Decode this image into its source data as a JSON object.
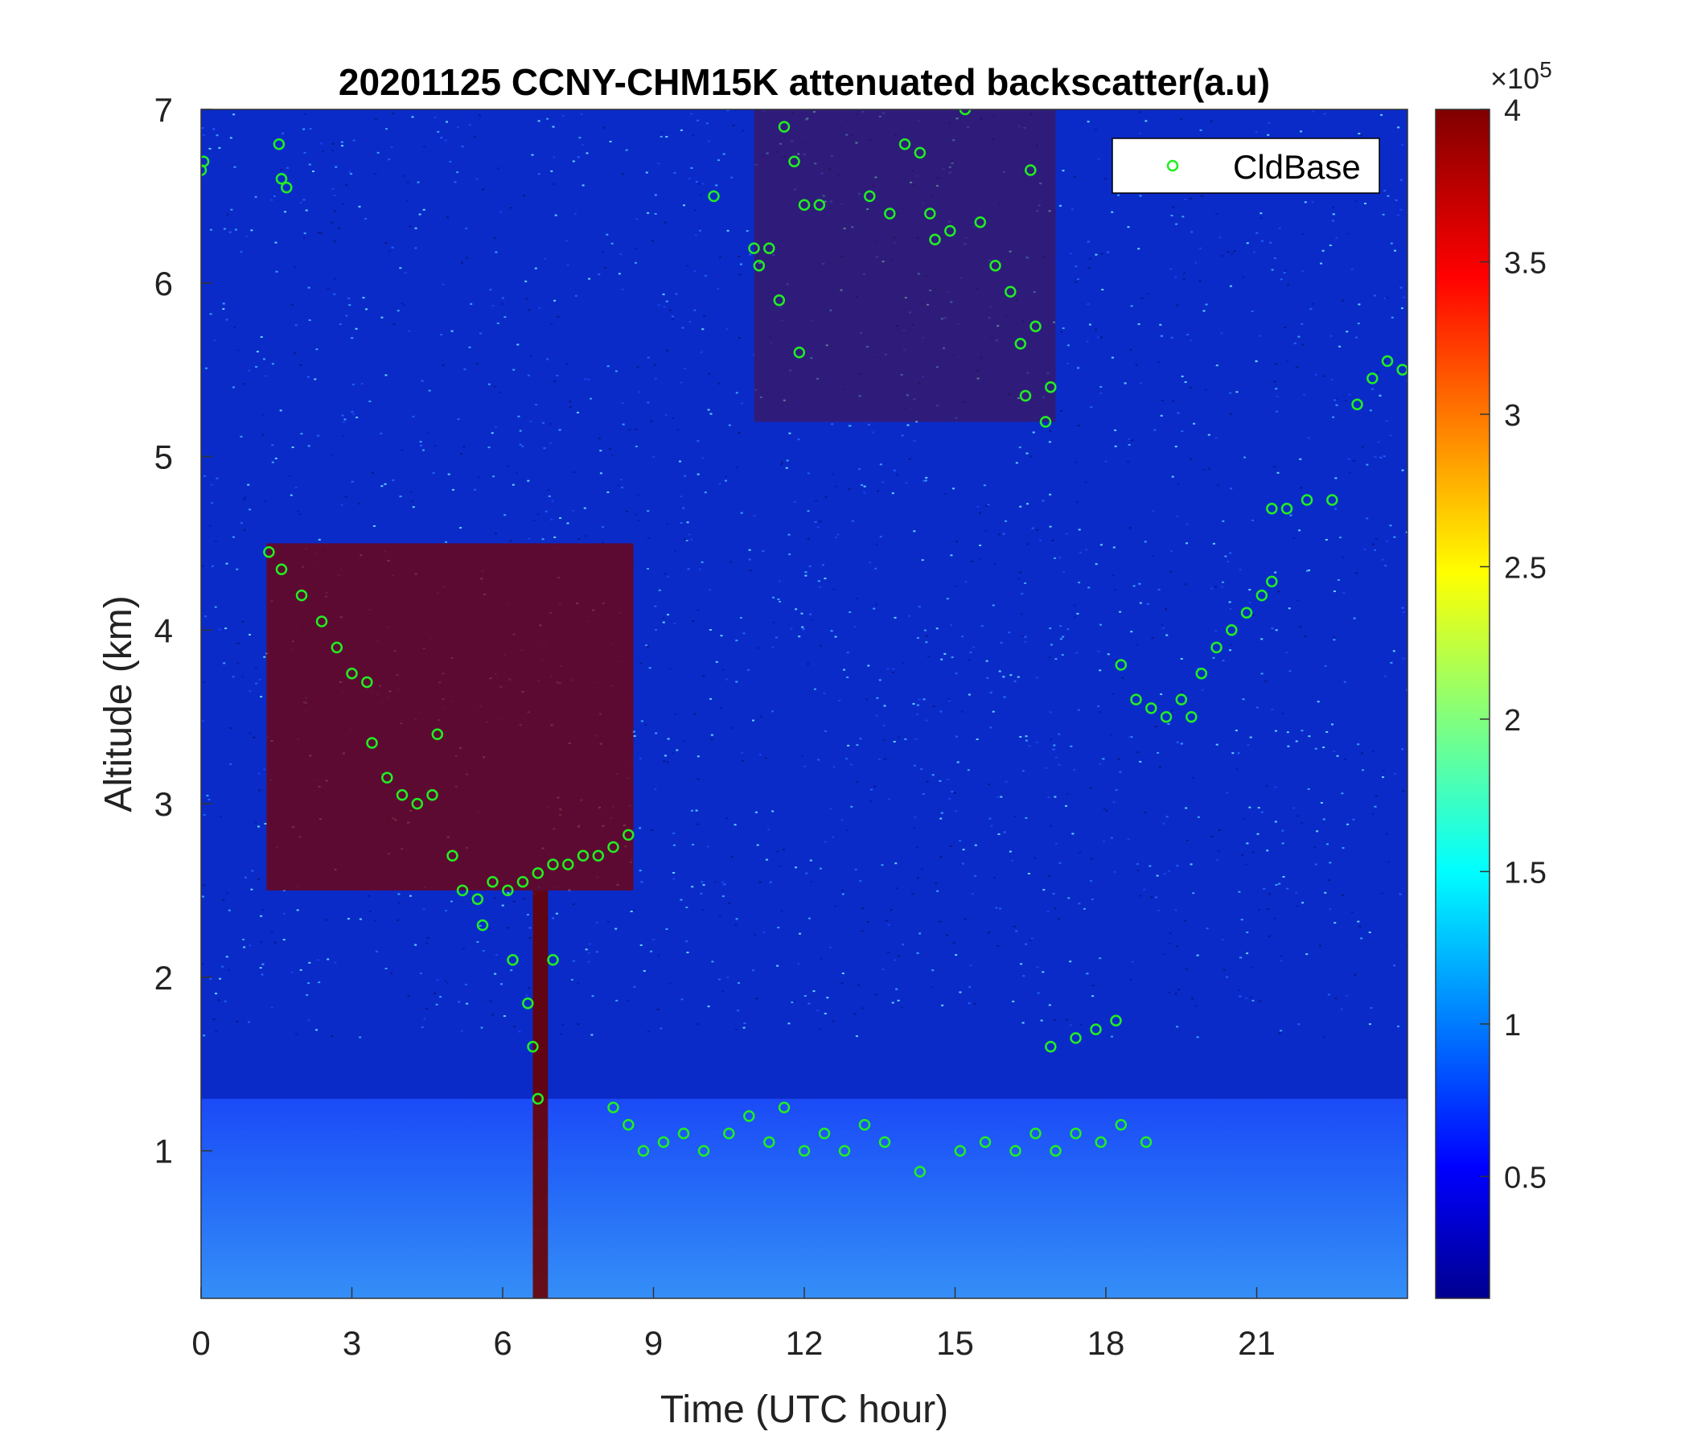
{
  "chart_data": {
    "type": "heatmap",
    "title": "20201125 CCNY-CHM15K attenuated backscatter(a.u)",
    "xlabel": "Time (UTC hour)",
    "ylabel": "Altitude (km)",
    "xlim": [
      0,
      24
    ],
    "ylim": [
      0.15,
      7
    ],
    "xticks": [
      0,
      3,
      6,
      9,
      12,
      15,
      18,
      21
    ],
    "xtick_labels": [
      "0",
      "3",
      "6",
      "9",
      "12",
      "15",
      "18",
      "21"
    ],
    "yticks": [
      1,
      2,
      3,
      4,
      5,
      6,
      7
    ],
    "ytick_labels": [
      "1",
      "2",
      "3",
      "4",
      "5",
      "6",
      "7"
    ],
    "colorbar": {
      "colormap": "jet",
      "clim": [
        0.1,
        4
      ],
      "ticks": [
        0.5,
        1,
        1.5,
        2,
        2.5,
        3,
        3.5,
        4
      ],
      "tick_labels": [
        "0.5",
        "1",
        "1.5",
        "2",
        "2.5",
        "3",
        "3.5",
        "4"
      ],
      "exponent_label": "×10",
      "exponent_power": "5"
    },
    "legend": {
      "position": "top-right",
      "entries": [
        "CldBase"
      ]
    },
    "series": [
      {
        "name": "CldBase",
        "marker": "open-circle",
        "color": "#22ee22",
        "points": [
          [
            0.0,
            6.65
          ],
          [
            0.05,
            6.7
          ],
          [
            1.55,
            6.8
          ],
          [
            1.6,
            6.6
          ],
          [
            1.7,
            6.55
          ],
          [
            1.35,
            4.45
          ],
          [
            1.6,
            4.35
          ],
          [
            2.0,
            4.2
          ],
          [
            2.4,
            4.05
          ],
          [
            2.7,
            3.9
          ],
          [
            3.0,
            3.75
          ],
          [
            3.3,
            3.7
          ],
          [
            3.4,
            3.35
          ],
          [
            3.7,
            3.15
          ],
          [
            4.0,
            3.05
          ],
          [
            4.3,
            3.0
          ],
          [
            4.6,
            3.05
          ],
          [
            5.0,
            2.7
          ],
          [
            5.2,
            2.5
          ],
          [
            5.5,
            2.45
          ],
          [
            5.8,
            2.55
          ],
          [
            6.1,
            2.5
          ],
          [
            6.4,
            2.55
          ],
          [
            6.7,
            2.6
          ],
          [
            7.0,
            2.65
          ],
          [
            7.3,
            2.65
          ],
          [
            7.6,
            2.7
          ],
          [
            7.9,
            2.7
          ],
          [
            8.2,
            2.75
          ],
          [
            8.5,
            2.82
          ],
          [
            4.7,
            3.4
          ],
          [
            5.6,
            2.3
          ],
          [
            6.2,
            2.1
          ],
          [
            6.5,
            1.85
          ],
          [
            6.6,
            1.6
          ],
          [
            6.7,
            1.3
          ],
          [
            7.0,
            2.1
          ],
          [
            8.2,
            1.25
          ],
          [
            8.5,
            1.15
          ],
          [
            8.8,
            1.0
          ],
          [
            9.2,
            1.05
          ],
          [
            9.6,
            1.1
          ],
          [
            10.0,
            1.0
          ],
          [
            10.5,
            1.1
          ],
          [
            10.9,
            1.2
          ],
          [
            11.3,
            1.05
          ],
          [
            11.6,
            1.25
          ],
          [
            12.0,
            1.0
          ],
          [
            12.4,
            1.1
          ],
          [
            12.8,
            1.0
          ],
          [
            13.2,
            1.15
          ],
          [
            13.6,
            1.05
          ],
          [
            14.3,
            0.88
          ],
          [
            15.1,
            1.0
          ],
          [
            15.6,
            1.05
          ],
          [
            16.2,
            1.0
          ],
          [
            16.6,
            1.1
          ],
          [
            17.0,
            1.0
          ],
          [
            17.4,
            1.1
          ],
          [
            17.9,
            1.05
          ],
          [
            18.3,
            1.15
          ],
          [
            18.8,
            1.05
          ],
          [
            16.9,
            1.6
          ],
          [
            17.4,
            1.65
          ],
          [
            17.8,
            1.7
          ],
          [
            18.2,
            1.75
          ],
          [
            18.3,
            3.8
          ],
          [
            18.6,
            3.6
          ],
          [
            18.9,
            3.55
          ],
          [
            19.2,
            3.5
          ],
          [
            19.5,
            3.6
          ],
          [
            19.7,
            3.5
          ],
          [
            19.9,
            3.75
          ],
          [
            20.2,
            3.9
          ],
          [
            20.5,
            4.0
          ],
          [
            20.8,
            4.1
          ],
          [
            21.1,
            4.2
          ],
          [
            21.3,
            4.28
          ],
          [
            21.3,
            4.7
          ],
          [
            21.6,
            4.7
          ],
          [
            22.0,
            4.75
          ],
          [
            22.5,
            4.75
          ],
          [
            23.0,
            5.3
          ],
          [
            23.3,
            5.45
          ],
          [
            23.6,
            5.55
          ],
          [
            23.9,
            5.5
          ],
          [
            10.2,
            6.5
          ],
          [
            11.0,
            6.2
          ],
          [
            11.1,
            6.1
          ],
          [
            11.3,
            6.2
          ],
          [
            11.5,
            5.9
          ],
          [
            11.6,
            6.9
          ],
          [
            11.8,
            6.7
          ],
          [
            12.0,
            6.45
          ],
          [
            12.3,
            6.45
          ],
          [
            11.9,
            5.6
          ],
          [
            13.3,
            6.5
          ],
          [
            13.7,
            6.4
          ],
          [
            14.0,
            6.8
          ],
          [
            14.3,
            6.75
          ],
          [
            14.5,
            6.4
          ],
          [
            14.6,
            6.25
          ],
          [
            14.9,
            6.3
          ],
          [
            15.2,
            7.0
          ],
          [
            15.5,
            6.35
          ],
          [
            15.8,
            6.1
          ],
          [
            16.1,
            5.95
          ],
          [
            16.3,
            5.65
          ],
          [
            16.4,
            5.35
          ],
          [
            16.6,
            5.75
          ],
          [
            16.8,
            5.2
          ],
          [
            16.9,
            5.4
          ],
          [
            16.5,
            6.65
          ]
        ]
      }
    ],
    "features": [
      {
        "label": "boundary layer (high backscatter)",
        "x_range": [
          0,
          24
        ],
        "alt_range": [
          0.15,
          1.3
        ]
      },
      {
        "label": "descending cloud layer",
        "x_range": [
          1.3,
          8.6
        ],
        "alt_range": [
          2.5,
          4.5
        ]
      },
      {
        "label": "precipitation streak",
        "x_range": [
          6.6,
          6.9
        ],
        "alt_range": [
          0.15,
          2.5
        ]
      },
      {
        "label": "high cirrus",
        "x_range": [
          11.0,
          17.0
        ],
        "alt_range": [
          5.2,
          7.0
        ]
      }
    ]
  }
}
